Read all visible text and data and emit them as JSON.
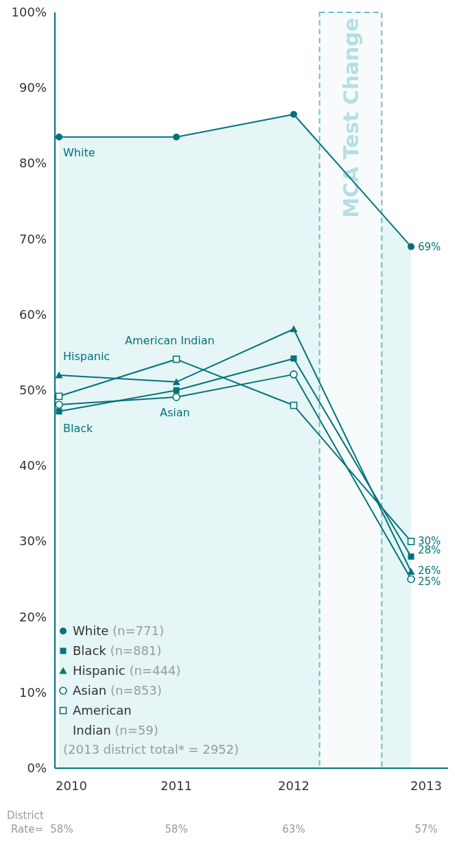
{
  "chart_data": {
    "type": "line",
    "categories": [
      "2010",
      "2011",
      "2012",
      "2013"
    ],
    "series": [
      {
        "name": "White",
        "type": "area",
        "color": "#00737b",
        "marker": "circle",
        "values": [
          83.5,
          83.5,
          86.5,
          69
        ],
        "value_labels": [
          null,
          null,
          null,
          "69%"
        ]
      },
      {
        "name": "Black",
        "color": "#00737b",
        "marker": "square",
        "values": [
          47.2,
          50,
          54.2,
          28
        ],
        "value_labels": [
          null,
          null,
          null,
          "28%"
        ]
      },
      {
        "name": "Hispanic",
        "color": "#00737b",
        "marker": "triangle",
        "values": [
          52,
          51.1,
          58.1,
          26
        ],
        "value_labels": [
          null,
          null,
          null,
          "26%"
        ]
      },
      {
        "name": "Asian",
        "color": "#00737b",
        "marker": "circle",
        "values": [
          48.1,
          49.1,
          52.1,
          25
        ],
        "value_labels": [
          null,
          null,
          null,
          "25%"
        ]
      },
      {
        "name": "American Indian",
        "color": "#00737b",
        "marker": "square",
        "values": [
          49.2,
          54.1,
          48,
          30
        ],
        "value_labels": [
          null,
          null,
          null,
          "30%"
        ]
      }
    ],
    "ylim": [
      0,
      100
    ],
    "yticks": [
      {
        "value": 0,
        "label": "0%"
      },
      {
        "value": 10,
        "label": "10%"
      },
      {
        "value": 20,
        "label": "20%"
      },
      {
        "value": 30,
        "label": "30%"
      },
      {
        "value": 40,
        "label": "40%"
      },
      {
        "value": 50,
        "label": "50%"
      },
      {
        "value": 60,
        "label": "60%"
      },
      {
        "value": 70,
        "label": "70%"
      },
      {
        "value": 80,
        "label": "80%"
      },
      {
        "value": 90,
        "label": "90%"
      },
      {
        "value": 100,
        "label": "100%"
      }
    ],
    "bands": [
      {
        "axis": "x",
        "from": "2012",
        "to": "2013",
        "label": "MCA Test Change",
        "color": "#6fbdc2"
      }
    ],
    "legend": "bottom left",
    "annotations": [
      "(n=771)",
      "(n=881)",
      "(n=444)",
      "(n=853)",
      "(n=59)",
      "(2013 district total* = 2952)",
      "District Rate=",
      "58%",
      "58%",
      "63%",
      "57%"
    ]
  }
}
